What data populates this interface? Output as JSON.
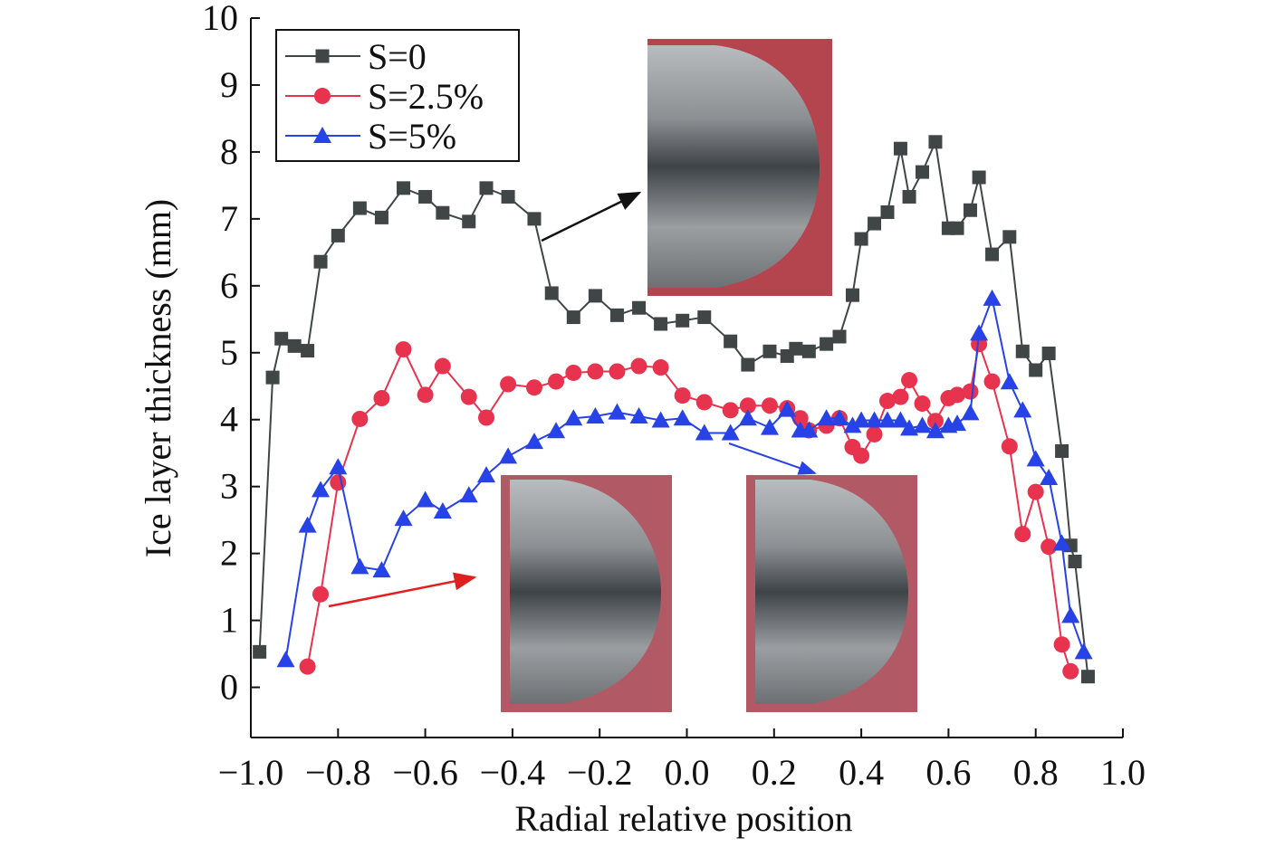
{
  "chart_data": {
    "type": "line",
    "xlabel": "Radial relative position",
    "ylabel": "Ice layer thickness (mm)",
    "xlim": [
      -1,
      1
    ],
    "ylim": [
      -0.75,
      10
    ],
    "xticks": [
      {
        "value": -1,
        "label": "−1.0"
      },
      {
        "value": -0.8,
        "label": "−0.8"
      },
      {
        "value": -0.6,
        "label": "−0.6"
      },
      {
        "value": -0.4,
        "label": "−0.4"
      },
      {
        "value": -0.2,
        "label": "−0.2"
      },
      {
        "value": 0,
        "label": "0.0"
      },
      0.2,
      0.4,
      0.6,
      0.8,
      {
        "value": 1,
        "label": "1.0"
      }
    ],
    "yticks": [
      0,
      1,
      2,
      3,
      4,
      5,
      6,
      7,
      8,
      9,
      10
    ],
    "legend": "upper left",
    "series": [
      {
        "name": "S=0",
        "color": "#404545",
        "marker": "square",
        "x": [
          -0.98,
          -0.95,
          -0.93,
          -0.9,
          -0.87,
          -0.84,
          -0.8,
          -0.75,
          -0.7,
          -0.65,
          -0.6,
          -0.56,
          -0.5,
          -0.46,
          -0.41,
          -0.35,
          -0.31,
          -0.26,
          -0.21,
          -0.16,
          -0.11,
          -0.06,
          -0.01,
          0.04,
          0.1,
          0.14,
          0.19,
          0.23,
          0.25,
          0.28,
          0.32,
          0.35,
          0.38,
          0.4,
          0.43,
          0.46,
          0.49,
          0.51,
          0.54,
          0.57,
          0.6,
          0.62,
          0.65,
          0.67,
          0.7,
          0.74,
          0.77,
          0.8,
          0.83,
          0.86,
          0.88,
          0.89,
          0.92
        ],
        "values": [
          0.53,
          4.63,
          5.21,
          5.1,
          5.03,
          6.36,
          6.75,
          7.16,
          7.02,
          7.46,
          7.33,
          7.09,
          6.96,
          7.46,
          7.33,
          7.0,
          5.89,
          5.53,
          5.85,
          5.56,
          5.67,
          5.43,
          5.48,
          5.53,
          5.17,
          4.82,
          5.02,
          4.95,
          5.06,
          5.02,
          5.13,
          5.24,
          5.86,
          6.7,
          6.93,
          7.1,
          8.05,
          7.33,
          7.7,
          8.15,
          6.86,
          6.86,
          7.13,
          7.62,
          6.47,
          6.73,
          5.02,
          4.74,
          4.99,
          3.53,
          2.12,
          1.88,
          0.16
        ]
      },
      {
        "name": "S=2.5%",
        "color": "#e8334f",
        "marker": "circle",
        "x": [
          -0.87,
          -0.84,
          -0.8,
          -0.75,
          -0.7,
          -0.65,
          -0.6,
          -0.56,
          -0.5,
          -0.46,
          -0.41,
          -0.35,
          -0.3,
          -0.26,
          -0.21,
          -0.16,
          -0.11,
          -0.06,
          -0.01,
          0.04,
          0.1,
          0.14,
          0.19,
          0.23,
          0.26,
          0.28,
          0.32,
          0.35,
          0.38,
          0.4,
          0.43,
          0.46,
          0.49,
          0.51,
          0.54,
          0.57,
          0.6,
          0.62,
          0.65,
          0.67,
          0.7,
          0.74,
          0.77,
          0.8,
          0.83,
          0.86,
          0.88
        ],
        "values": [
          0.31,
          1.39,
          3.06,
          4.01,
          4.32,
          5.05,
          4.37,
          4.8,
          4.34,
          4.03,
          4.53,
          4.48,
          4.57,
          4.7,
          4.72,
          4.72,
          4.8,
          4.78,
          4.36,
          4.26,
          4.14,
          4.21,
          4.21,
          4.17,
          4.02,
          3.84,
          3.91,
          4.02,
          3.59,
          3.46,
          3.78,
          4.28,
          4.34,
          4.59,
          4.24,
          3.98,
          4.32,
          4.37,
          4.42,
          5.13,
          4.57,
          3.6,
          2.29,
          2.92,
          2.1,
          0.64,
          0.24
        ]
      },
      {
        "name": "S=5%",
        "color": "#2742e6",
        "marker": "triangle",
        "x": [
          -0.92,
          -0.87,
          -0.84,
          -0.8,
          -0.75,
          -0.7,
          -0.65,
          -0.6,
          -0.56,
          -0.5,
          -0.46,
          -0.41,
          -0.35,
          -0.3,
          -0.26,
          -0.21,
          -0.16,
          -0.11,
          -0.06,
          -0.01,
          0.04,
          0.1,
          0.14,
          0.19,
          0.23,
          0.26,
          0.28,
          0.32,
          0.35,
          0.38,
          0.4,
          0.43,
          0.46,
          0.49,
          0.51,
          0.54,
          0.57,
          0.6,
          0.62,
          0.65,
          0.67,
          0.7,
          0.74,
          0.77,
          0.8,
          0.83,
          0.86,
          0.88,
          0.91
        ],
        "values": [
          0.41,
          2.42,
          2.95,
          3.29,
          1.8,
          1.75,
          2.52,
          2.8,
          2.63,
          2.87,
          3.17,
          3.45,
          3.67,
          3.83,
          4.02,
          4.05,
          4.11,
          4.05,
          3.99,
          4.02,
          3.8,
          3.8,
          4.02,
          3.88,
          4.15,
          3.84,
          3.84,
          4.02,
          4.02,
          3.91,
          3.99,
          3.99,
          3.99,
          3.99,
          3.87,
          3.91,
          3.83,
          3.91,
          3.94,
          4.1,
          5.29,
          5.81,
          4.56,
          4.14,
          3.41,
          3.13,
          2.15,
          1.07,
          0.53
        ]
      }
    ]
  }
}
